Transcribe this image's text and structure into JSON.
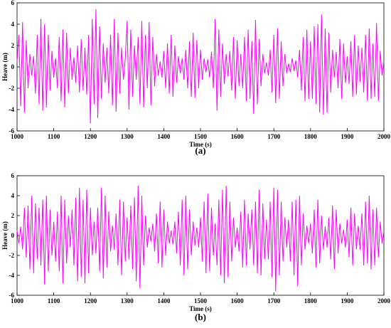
{
  "chart_data": [
    {
      "type": "line",
      "label": "(a)",
      "xlabel": "Time (s)",
      "ylabel": "Heave (m)",
      "color": "#ff00ff",
      "xlim": [
        1000,
        2000
      ],
      "xticks": [
        1000,
        1100,
        1200,
        1300,
        1400,
        1500,
        1600,
        1700,
        1800,
        1900,
        2000
      ],
      "ylim": [
        -6,
        6
      ],
      "yticks": [
        -6,
        -4,
        -2,
        0,
        2,
        4,
        6
      ],
      "x": [
        1000,
        1005,
        1010,
        1015,
        1020,
        1025,
        1030,
        1035,
        1040,
        1045,
        1050,
        1055,
        1060,
        1065,
        1070,
        1075,
        1080,
        1085,
        1090,
        1095,
        1100,
        1105,
        1110,
        1115,
        1120,
        1125,
        1130,
        1135,
        1140,
        1145,
        1150,
        1155,
        1160,
        1165,
        1170,
        1175,
        1180,
        1185,
        1190,
        1195,
        1200,
        1205,
        1210,
        1215,
        1220,
        1225,
        1230,
        1235,
        1240,
        1245,
        1250,
        1255,
        1260,
        1265,
        1270,
        1275,
        1280,
        1285,
        1290,
        1295,
        1300,
        1305,
        1310,
        1315,
        1320,
        1325,
        1330,
        1335,
        1340,
        1345,
        1350,
        1355,
        1360,
        1365,
        1370,
        1375,
        1380,
        1385,
        1390,
        1395,
        1400,
        1405,
        1410,
        1415,
        1420,
        1425,
        1430,
        1435,
        1440,
        1445,
        1450,
        1455,
        1460,
        1465,
        1470,
        1475,
        1480,
        1485,
        1490,
        1495,
        1500,
        1505,
        1510,
        1515,
        1520,
        1525,
        1530,
        1535,
        1540,
        1545,
        1550,
        1555,
        1560,
        1565,
        1570,
        1575,
        1580,
        1585,
        1590,
        1595,
        1600,
        1605,
        1610,
        1615,
        1620,
        1625,
        1630,
        1635,
        1640,
        1645,
        1650,
        1655,
        1660,
        1665,
        1670,
        1675,
        1680,
        1685,
        1690,
        1695,
        1700,
        1705,
        1710,
        1715,
        1720,
        1725,
        1730,
        1735,
        1740,
        1745,
        1750,
        1755,
        1760,
        1765,
        1770,
        1775,
        1780,
        1785,
        1790,
        1795,
        1800,
        1805,
        1810,
        1815,
        1820,
        1825,
        1830,
        1835,
        1840,
        1845,
        1850,
        1855,
        1860,
        1865,
        1870,
        1875,
        1880,
        1885,
        1890,
        1895,
        1900,
        1905,
        1910,
        1915,
        1920,
        1925,
        1930,
        1935,
        1940,
        1945,
        1950,
        1955,
        1960,
        1965,
        1970,
        1975,
        1980,
        1985,
        1990,
        1995,
        2000
      ],
      "values": [
        0.5,
        3.0,
        -3.7,
        4.2,
        -4.3,
        2.5,
        -2.0,
        1.2,
        -0.8,
        1.0,
        -2.5,
        3.0,
        -3.5,
        4.5,
        -4.1,
        4.0,
        -3.8,
        3.0,
        -2.2,
        1.5,
        -1.0,
        0.8,
        -2.0,
        2.8,
        -3.2,
        3.5,
        -3.8,
        3.2,
        -2.5,
        1.8,
        -1.2,
        0.9,
        -1.5,
        2.0,
        -2.4,
        2.6,
        -2.2,
        1.8,
        -2.6,
        3.0,
        -5.3,
        4.5,
        -3.5,
        5.4,
        -4.8,
        3.8,
        -3.0,
        2.2,
        -1.5,
        1.8,
        -2.5,
        3.0,
        -3.6,
        4.5,
        -4.2,
        3.2,
        -2.5,
        1.8,
        -1.2,
        0.8,
        4.3,
        -4.0,
        3.5,
        -2.8,
        2.0,
        -1.2,
        2.8,
        -3.5,
        4.3,
        -3.8,
        3.0,
        -2.0,
        4.2,
        -3.6,
        2.8,
        -1.8,
        1.2,
        -0.8,
        0.5,
        -1.0,
        1.5,
        -2.0,
        2.2,
        -2.5,
        3.0,
        -2.8,
        2.0,
        -1.5,
        1.0,
        -0.6,
        0.8,
        -1.2,
        1.6,
        -2.0,
        2.4,
        -2.8,
        3.2,
        -2.9,
        2.5,
        -2.0,
        1.6,
        -1.2,
        0.8,
        -0.5,
        0.7,
        -1.0,
        1.4,
        -2.0,
        4.5,
        -4.1,
        3.5,
        -2.8,
        2.2,
        -1.6,
        1.2,
        -0.9,
        1.5,
        -2.2,
        2.8,
        -3.0,
        2.5,
        -1.8,
        1.2,
        -2.0,
        2.8,
        -3.2,
        3.5,
        -3.0,
        2.4,
        -4.4,
        4.4,
        -3.5,
        2.6,
        -1.8,
        1.2,
        -0.6,
        0.4,
        -0.8,
        1.6,
        -2.4,
        3.0,
        -3.4,
        3.6,
        -3.0,
        2.4,
        -1.8,
        1.2,
        -0.6,
        0.3,
        -0.5,
        0.8,
        -0.4,
        0.6,
        -1.0,
        1.6,
        -2.2,
        2.8,
        -3.2,
        3.5,
        -3.0,
        2.4,
        -3.0,
        3.8,
        -3.5,
        4.0,
        -4.3,
        4.9,
        -4.5,
        3.6,
        -4.3,
        3.2,
        -2.4,
        1.6,
        -1.0,
        1.4,
        -2.0,
        2.6,
        -3.0,
        2.2,
        -1.5,
        1.0,
        -1.6,
        2.4,
        -2.8,
        3.0,
        -2.6,
        2.0,
        -1.4,
        1.8,
        -2.4,
        3.0,
        -3.2,
        3.6,
        -3.0,
        2.2,
        -2.8,
        4.1,
        -3.2,
        1.5,
        -0.8,
        0.5
      ]
    },
    {
      "type": "line",
      "label": "(b)",
      "xlabel": "Time (s)",
      "ylabel": "Heave (m)",
      "color": "#ff00ff",
      "xlim": [
        1000,
        2000
      ],
      "xticks": [
        1000,
        1100,
        1200,
        1300,
        1400,
        1500,
        1600,
        1700,
        1800,
        1900,
        2000
      ],
      "ylim": [
        -6,
        6
      ],
      "yticks": [
        -6,
        -4,
        -2,
        0,
        2,
        4,
        6
      ],
      "x": [
        1000,
        1005,
        1010,
        1015,
        1020,
        1025,
        1030,
        1035,
        1040,
        1045,
        1050,
        1055,
        1060,
        1065,
        1070,
        1075,
        1080,
        1085,
        1090,
        1095,
        1100,
        1105,
        1110,
        1115,
        1120,
        1125,
        1130,
        1135,
        1140,
        1145,
        1150,
        1155,
        1160,
        1165,
        1170,
        1175,
        1180,
        1185,
        1190,
        1195,
        1200,
        1205,
        1210,
        1215,
        1220,
        1225,
        1230,
        1235,
        1240,
        1245,
        1250,
        1255,
        1260,
        1265,
        1270,
        1275,
        1280,
        1285,
        1290,
        1295,
        1300,
        1305,
        1310,
        1315,
        1320,
        1325,
        1330,
        1335,
        1340,
        1345,
        1350,
        1355,
        1360,
        1365,
        1370,
        1375,
        1380,
        1385,
        1390,
        1395,
        1400,
        1405,
        1410,
        1415,
        1420,
        1425,
        1430,
        1435,
        1440,
        1445,
        1450,
        1455,
        1460,
        1465,
        1470,
        1475,
        1480,
        1485,
        1490,
        1495,
        1500,
        1505,
        1510,
        1515,
        1520,
        1525,
        1530,
        1535,
        1540,
        1545,
        1550,
        1555,
        1560,
        1565,
        1570,
        1575,
        1580,
        1585,
        1590,
        1595,
        1600,
        1605,
        1610,
        1615,
        1620,
        1625,
        1630,
        1635,
        1640,
        1645,
        1650,
        1655,
        1660,
        1665,
        1670,
        1675,
        1680,
        1685,
        1690,
        1695,
        1700,
        1705,
        1710,
        1715,
        1720,
        1725,
        1730,
        1735,
        1740,
        1745,
        1750,
        1755,
        1760,
        1765,
        1770,
        1775,
        1780,
        1785,
        1790,
        1795,
        1800,
        1805,
        1810,
        1815,
        1820,
        1825,
        1830,
        1835,
        1840,
        1845,
        1850,
        1855,
        1860,
        1865,
        1870,
        1875,
        1880,
        1885,
        1890,
        1895,
        1900,
        1905,
        1910,
        1915,
        1920,
        1925,
        1930,
        1935,
        1940,
        1945,
        1950,
        1955,
        1960,
        1965,
        1970,
        1975,
        1980,
        1985,
        1990,
        1995,
        2000
      ],
      "values": [
        0.5,
        -0.8,
        0.9,
        -1.4,
        2.8,
        -2.2,
        3.0,
        -3.4,
        4.0,
        -3.8,
        3.2,
        -2.4,
        2.8,
        -3.0,
        3.6,
        -4.9,
        4.0,
        -3.6,
        2.6,
        -2.0,
        1.4,
        -2.6,
        2.4,
        -3.6,
        4.0,
        -4.8,
        3.6,
        -2.8,
        2.0,
        -1.2,
        2.6,
        -3.0,
        3.8,
        -4.6,
        4.8,
        -4.2,
        3.6,
        -4.8,
        4.6,
        -3.8,
        2.8,
        -2.0,
        1.4,
        -1.8,
        2.8,
        -3.6,
        4.8,
        -4.3,
        4.0,
        -3.2,
        2.4,
        -1.6,
        1.0,
        -1.4,
        2.2,
        -3.0,
        3.6,
        -4.0,
        3.4,
        -2.6,
        1.8,
        -2.4,
        3.0,
        -3.4,
        3.8,
        -4.6,
        5.0,
        -5.3,
        4.0,
        -3.0,
        2.0,
        -1.2,
        0.8,
        -0.6,
        1.2,
        -1.6,
        2.2,
        -2.8,
        3.4,
        -3.2,
        2.6,
        -2.0,
        1.4,
        -0.8,
        0.5,
        -0.9,
        1.4,
        -1.8,
        2.4,
        -3.0,
        3.6,
        -4.0,
        4.0,
        -3.4,
        2.6,
        -2.0,
        1.4,
        -1.0,
        0.8,
        -1.2,
        1.8,
        -2.6,
        3.4,
        -3.8,
        4.2,
        -3.6,
        2.8,
        -2.0,
        1.2,
        -3.0,
        3.6,
        -4.0,
        4.6,
        -4.8,
        5.0,
        -4.2,
        3.4,
        -2.6,
        1.8,
        -1.2,
        0.8,
        -1.6,
        2.4,
        -3.2,
        3.6,
        -3.0,
        2.2,
        -1.4,
        2.6,
        -3.0,
        3.4,
        -3.8,
        4.6,
        -4.0,
        3.2,
        -2.4,
        1.6,
        -2.4,
        3.4,
        -4.2,
        4.8,
        -5.6,
        4.6,
        -4.0,
        3.4,
        -2.6,
        1.8,
        -1.2,
        1.6,
        -2.6,
        3.4,
        -4.0,
        3.6,
        -5.1,
        4.0,
        -3.0,
        2.2,
        -1.4,
        1.0,
        -0.8,
        1.2,
        -1.8,
        2.6,
        -3.2,
        3.6,
        -2.8,
        2.0,
        -1.4,
        0.9,
        -1.2,
        1.8,
        -2.4,
        3.0,
        -3.4,
        2.6,
        -1.8,
        1.2,
        -0.8,
        0.6,
        -1.2,
        1.6,
        -2.2,
        2.8,
        -3.0,
        2.2,
        -1.4,
        1.0,
        -1.4,
        2.2,
        -3.0,
        3.4,
        -2.8,
        4.0,
        -3.4,
        2.6,
        -3.0,
        2.8,
        -2.2,
        1.4,
        -0.8,
        0.4
      ]
    }
  ]
}
